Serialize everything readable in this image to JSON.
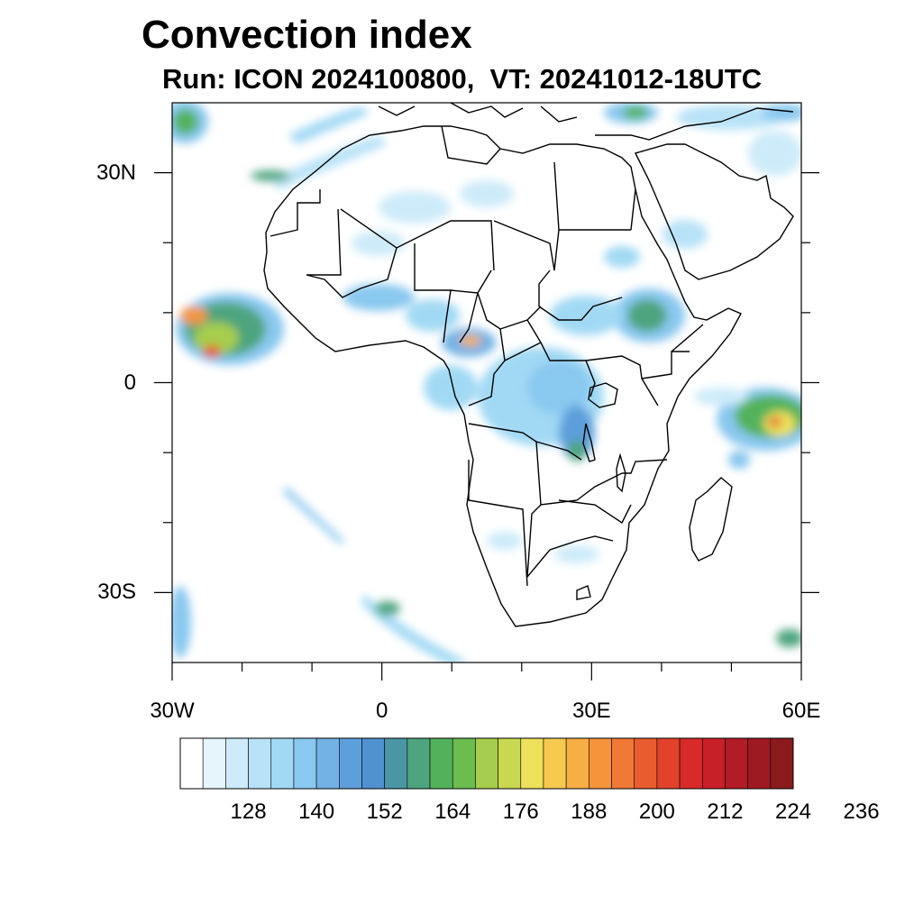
{
  "title": "Convection index",
  "subtitle": "Run: ICON 2024100800,  VT: 20241012-18UTC",
  "map": {
    "lon_range": [
      -30,
      60
    ],
    "lat_range": [
      -40,
      40
    ],
    "y_tick_labels": [
      {
        "label": "30N",
        "lat": 30
      },
      {
        "label": "0",
        "lat": 0
      },
      {
        "label": "30S",
        "lat": -30
      }
    ],
    "x_tick_labels": [
      {
        "label": "30W",
        "lon": -30
      },
      {
        "label": "0",
        "lon": 0
      },
      {
        "label": "30E",
        "lon": 30
      },
      {
        "label": "60E",
        "lon": 60
      }
    ],
    "minor_lon_ticks": [
      -20,
      -10,
      10,
      20,
      40,
      50
    ],
    "minor_lat_ticks": [
      20,
      10,
      -10,
      -20
    ]
  },
  "colorbar": {
    "colors": [
      "#ffffff",
      "#e6f5fc",
      "#cdebf9",
      "#b7e2f7",
      "#a1d9f4",
      "#89c8ef",
      "#72b2e5",
      "#5d9fdb",
      "#4f92cf",
      "#4a96a5",
      "#4da47e",
      "#52b25c",
      "#6bbd4e",
      "#a6cd4d",
      "#c9d851",
      "#ede05a",
      "#f7c94f",
      "#f7ae45",
      "#f5943b",
      "#f07935",
      "#e95c2f",
      "#e2422b",
      "#d72a29",
      "#c81f28",
      "#b31b26",
      "#9e1a22",
      "#8b1a1d"
    ],
    "labels": [
      "128",
      "140",
      "152",
      "164",
      "176",
      "188",
      "200",
      "212",
      "224",
      "236"
    ]
  }
}
